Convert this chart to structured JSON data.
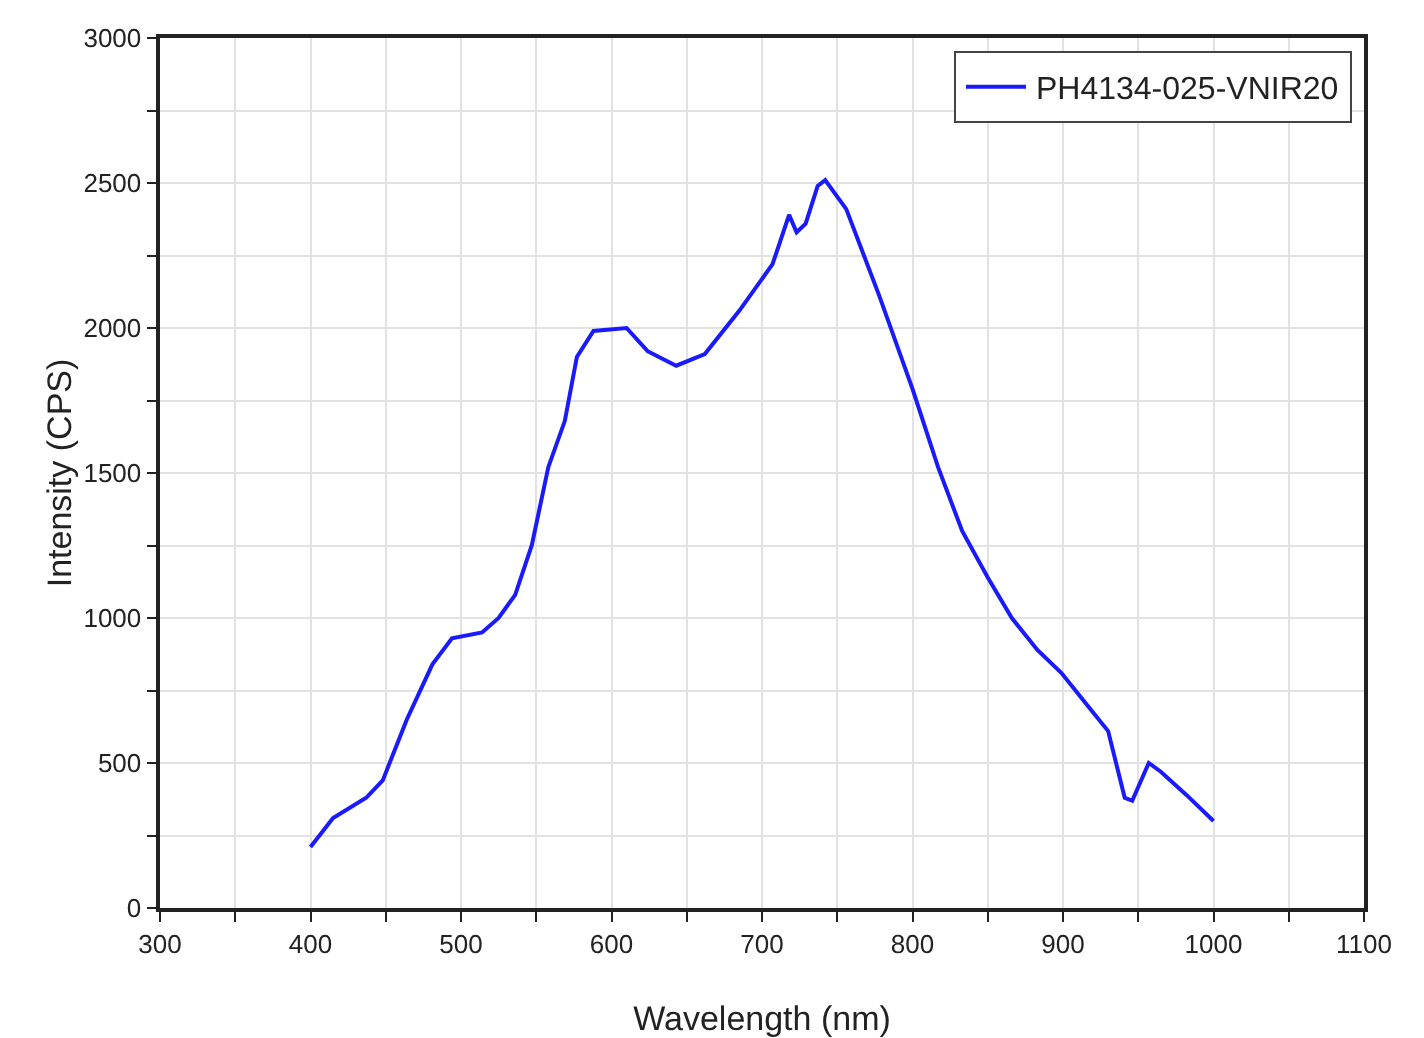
{
  "chart_data": {
    "type": "line",
    "xlabel": "Wavelength (nm)",
    "ylabel": "Intensity (CPS)",
    "xlim": [
      300,
      1100
    ],
    "ylim": [
      0,
      3000
    ],
    "xticks": [
      300,
      {
        "value": 350,
        "label": null
      },
      400,
      {
        "value": 450,
        "label": null
      },
      500,
      {
        "value": 550,
        "label": null
      },
      600,
      {
        "value": 650,
        "label": null
      },
      700,
      {
        "value": 750,
        "label": null
      },
      800,
      {
        "value": 850,
        "label": null
      },
      900,
      {
        "value": 950,
        "label": null
      },
      1000,
      {
        "value": 1050,
        "label": null
      },
      1100
    ],
    "yticks": [
      0,
      {
        "value": 250,
        "label": null
      },
      500,
      {
        "value": 750,
        "label": null
      },
      1000,
      {
        "value": 1250,
        "label": null
      },
      1500,
      {
        "value": 1750,
        "label": null
      },
      2000,
      {
        "value": 2250,
        "label": null
      },
      2500,
      {
        "value": 2750,
        "label": null
      },
      3000
    ],
    "grid": true,
    "legend": "top right",
    "marker": "none",
    "line_style": "solid",
    "x": [
      400,
      415,
      437,
      448,
      464,
      481,
      494,
      514,
      525,
      536,
      547,
      558,
      569,
      577,
      588,
      610,
      624,
      643,
      662,
      685,
      707,
      718,
      723,
      729,
      737,
      742,
      756,
      778,
      800,
      817,
      833,
      850,
      866,
      883,
      899,
      916,
      930,
      941,
      946,
      957,
      965,
      982,
      1000
    ],
    "series": [
      {
        "name": "PH4134-025-VNIR20",
        "color": "#1a1aff",
        "values": [
          210,
          310,
          380,
          440,
          650,
          840,
          930,
          950,
          1000,
          1080,
          1250,
          1520,
          1680,
          1900,
          1990,
          2000,
          1920,
          1870,
          1910,
          2060,
          2220,
          2390,
          2330,
          2360,
          2490,
          2510,
          2410,
          2110,
          1790,
          1520,
          1300,
          1140,
          1000,
          890,
          810,
          700,
          610,
          380,
          370,
          500,
          470,
          390,
          300
        ]
      }
    ]
  }
}
